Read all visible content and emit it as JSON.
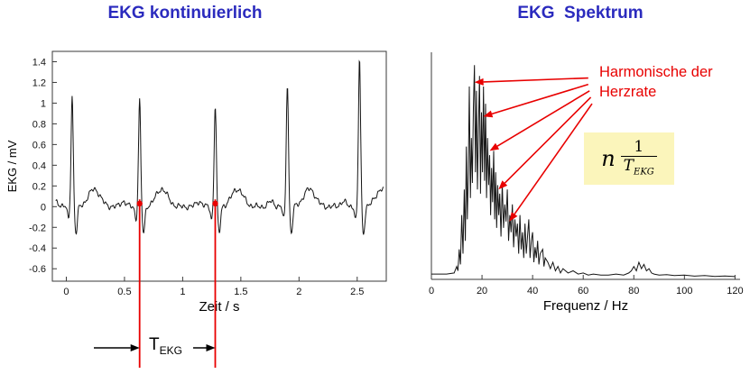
{
  "page": {
    "background": "#ffffff"
  },
  "left": {
    "period_label_main": "T",
    "period_label_sub": "EKG"
  },
  "right": {
    "harmonics_line1": "Harmonische der",
    "harmonics_line2": "Herzrate",
    "formula": {
      "factor": "n",
      "numerator": "1",
      "den_main": "T",
      "den_sub": "EKG"
    }
  },
  "colors": {
    "title_blue": "#2b2bbe",
    "accent_red": "#e80000",
    "formula_bg": "#fbf5bb",
    "trace": "#151515"
  },
  "chart_data": [
    {
      "type": "line",
      "title": "EKG kontinuierlich",
      "xlabel": "Zeit / s",
      "ylabel": "EKG / mV",
      "xlim": [
        -0.12,
        2.75
      ],
      "ylim": [
        -0.72,
        1.5
      ],
      "xticks": [
        0,
        0.5,
        1,
        1.5,
        2,
        2.5
      ],
      "xtick_labels": [
        "0",
        "0.5",
        "1",
        "1.5",
        "2",
        "2.5"
      ],
      "yticks": [
        -0.6,
        -0.4,
        -0.2,
        0,
        0.2,
        0.4,
        0.6,
        0.8,
        1,
        1.2,
        1.4
      ],
      "ytick_labels": [
        "-0.6",
        "-0.4",
        "-0.2",
        "0",
        "0.2",
        "0.4",
        "0.6",
        "0.8",
        "1",
        "1.2",
        "1.4"
      ],
      "grid": false,
      "legend": false,
      "beats": [
        {
          "t": 0.05,
          "r": 1.08
        },
        {
          "t": 0.63,
          "r": 1.03
        },
        {
          "t": 1.28,
          "r": 0.98
        },
        {
          "t": 1.9,
          "r": 1.2
        },
        {
          "t": 2.52,
          "r": 1.44
        }
      ],
      "marked_period": {
        "t1": 0.63,
        "t2": 1.28,
        "label": "T_EKG"
      }
    },
    {
      "type": "line",
      "title": "EKG  Spektrum",
      "xlabel": "Frequenz / Hz",
      "ylabel": "",
      "xlim": [
        0,
        122
      ],
      "ylim": [
        0,
        1.06
      ],
      "xticks": [
        0,
        20,
        40,
        60,
        80,
        100,
        120
      ],
      "xtick_labels": [
        "0",
        "20",
        "40",
        "60",
        "80",
        "100",
        "120"
      ],
      "grid": false,
      "legend": false,
      "annotation_harmonics": "Harmonische der Herzrate",
      "annotation_formula": "n · 1/T_EKG",
      "harmonic_arrows": [
        {
          "from": [
            62,
            0.94
          ],
          "to": [
            17,
            0.92
          ]
        },
        {
          "from": [
            62,
            0.91
          ],
          "to": [
            20.5,
            0.76
          ]
        },
        {
          "from": [
            62.5,
            0.88
          ],
          "to": [
            23,
            0.6
          ]
        },
        {
          "from": [
            63,
            0.85
          ],
          "to": [
            26.5,
            0.42
          ]
        },
        {
          "from": [
            63.5,
            0.82
          ],
          "to": [
            30.8,
            0.27
          ]
        }
      ],
      "points": [
        [
          0,
          0.025
        ],
        [
          6,
          0.025
        ],
        [
          9,
          0.03
        ],
        [
          10,
          0.06
        ],
        [
          10.5,
          0.04
        ],
        [
          11,
          0.14
        ],
        [
          11.5,
          0.07
        ],
        [
          12,
          0.3
        ],
        [
          12.5,
          0.12
        ],
        [
          13,
          0.42
        ],
        [
          13.4,
          0.18
        ],
        [
          13.8,
          0.62
        ],
        [
          14.2,
          0.28
        ],
        [
          14.6,
          0.5
        ],
        [
          15,
          0.9
        ],
        [
          15.4,
          0.38
        ],
        [
          15.8,
          0.66
        ],
        [
          16.2,
          0.45
        ],
        [
          16.6,
          0.8
        ],
        [
          17,
          1.0
        ],
        [
          17.4,
          0.5
        ],
        [
          17.8,
          0.88
        ],
        [
          18.2,
          0.42
        ],
        [
          18.6,
          0.7
        ],
        [
          19,
          0.95
        ],
        [
          19.4,
          0.4
        ],
        [
          19.8,
          0.78
        ],
        [
          20.2,
          0.5
        ],
        [
          20.6,
          0.9
        ],
        [
          21,
          0.46
        ],
        [
          21.4,
          0.82
        ],
        [
          21.8,
          0.38
        ],
        [
          22.2,
          0.66
        ],
        [
          22.6,
          0.44
        ],
        [
          23,
          0.58
        ],
        [
          23.4,
          0.3
        ],
        [
          23.8,
          0.52
        ],
        [
          24.2,
          0.36
        ],
        [
          24.6,
          0.6
        ],
        [
          25,
          0.28
        ],
        [
          25.4,
          0.5
        ],
        [
          25.8,
          0.24
        ],
        [
          26.2,
          0.44
        ],
        [
          26.6,
          0.3
        ],
        [
          27,
          0.4
        ],
        [
          27.5,
          0.2
        ],
        [
          28,
          0.45
        ],
        [
          28.5,
          0.24
        ],
        [
          29,
          0.35
        ],
        [
          29.5,
          0.27
        ],
        [
          30,
          0.42
        ],
        [
          30.5,
          0.18
        ],
        [
          31,
          0.3
        ],
        [
          31.5,
          0.22
        ],
        [
          32,
          0.35
        ],
        [
          32.5,
          0.15
        ],
        [
          33,
          0.28
        ],
        [
          33.5,
          0.2
        ],
        [
          34,
          0.26
        ],
        [
          34.5,
          0.12
        ],
        [
          35,
          0.3
        ],
        [
          35.5,
          0.14
        ],
        [
          36,
          0.22
        ],
        [
          36.5,
          0.1
        ],
        [
          37,
          0.26
        ],
        [
          37.5,
          0.12
        ],
        [
          38,
          0.2
        ],
        [
          38.5,
          0.28
        ],
        [
          39,
          0.1
        ],
        [
          39.5,
          0.18
        ],
        [
          40,
          0.22
        ],
        [
          40.5,
          0.08
        ],
        [
          41,
          0.15
        ],
        [
          41.5,
          0.1
        ],
        [
          42,
          0.18
        ],
        [
          42.5,
          0.07
        ],
        [
          43,
          0.12
        ],
        [
          44,
          0.14
        ],
        [
          44.5,
          0.06
        ],
        [
          45,
          0.1
        ],
        [
          46,
          0.08
        ],
        [
          47,
          0.05
        ],
        [
          48,
          0.08
        ],
        [
          49,
          0.04
        ],
        [
          50,
          0.06
        ],
        [
          51,
          0.03
        ],
        [
          52,
          0.05
        ],
        [
          54,
          0.03
        ],
        [
          56,
          0.04
        ],
        [
          58,
          0.025
        ],
        [
          60,
          0.03
        ],
        [
          62,
          0.02
        ],
        [
          64,
          0.025
        ],
        [
          67,
          0.02
        ],
        [
          70,
          0.02
        ],
        [
          73,
          0.025
        ],
        [
          76,
          0.02
        ],
        [
          78,
          0.03
        ],
        [
          79,
          0.04
        ],
        [
          80,
          0.06
        ],
        [
          81,
          0.04
        ],
        [
          82,
          0.08
        ],
        [
          83,
          0.05
        ],
        [
          84,
          0.07
        ],
        [
          85,
          0.04
        ],
        [
          86,
          0.05
        ],
        [
          87,
          0.03
        ],
        [
          88,
          0.025
        ],
        [
          90,
          0.02
        ],
        [
          93,
          0.022
        ],
        [
          96,
          0.018
        ],
        [
          100,
          0.02
        ],
        [
          104,
          0.015
        ],
        [
          108,
          0.018
        ],
        [
          112,
          0.014
        ],
        [
          116,
          0.016
        ],
        [
          120,
          0.013
        ]
      ]
    }
  ]
}
